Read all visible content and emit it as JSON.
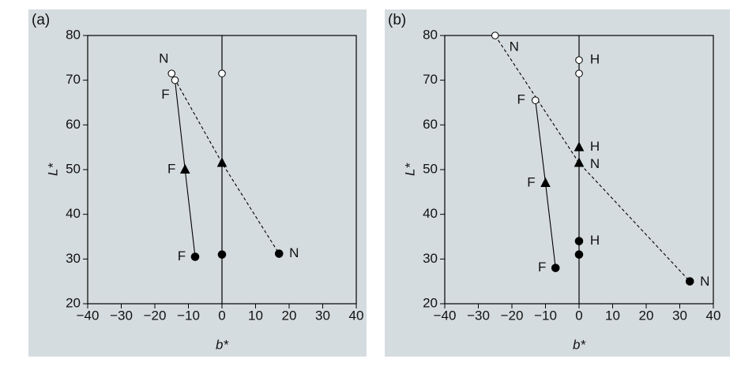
{
  "chart_data": [
    {
      "type": "scatter",
      "panel_label": "(a)",
      "xlabel": "b*",
      "ylabel": "L*",
      "xlim": [
        -40,
        40
      ],
      "ylim": [
        20,
        80
      ],
      "xticks": [
        {
          "value": -40,
          "label": "−40"
        },
        {
          "value": -30,
          "label": "−30"
        },
        {
          "value": -20,
          "label": "−20"
        },
        {
          "value": -10,
          "label": "−10"
        },
        0,
        10,
        20,
        30,
        40
      ],
      "yticks": [
        20,
        30,
        40,
        50,
        60,
        70,
        80
      ],
      "zero_line": true,
      "series": [
        {
          "style": "dashed",
          "x": [
            -15,
            0,
            17
          ],
          "y": [
            71.5,
            51.5,
            31.2
          ],
          "markers": [
            "open-circle",
            "filled-triangle",
            "filled-circle"
          ],
          "labels": [
            "N",
            null,
            "N"
          ]
        },
        {
          "style": "solid",
          "x": [
            -14,
            -11,
            -8
          ],
          "y": [
            70,
            50,
            30.5
          ],
          "markers": [
            "open-circle",
            "filled-triangle",
            "filled-circle"
          ],
          "labels": [
            "F",
            "F",
            "F"
          ]
        },
        {
          "style": "none",
          "x": [
            0,
            0
          ],
          "y": [
            71.5,
            31
          ],
          "markers": [
            "open-circle",
            "filled-circle"
          ]
        }
      ]
    },
    {
      "type": "scatter",
      "panel_label": "(b)",
      "xlabel": "b*",
      "ylabel": "L*",
      "xlim": [
        -40,
        40
      ],
      "ylim": [
        20,
        80
      ],
      "xticks": [
        {
          "value": -40,
          "label": "−40"
        },
        {
          "value": -30,
          "label": "−30"
        },
        {
          "value": -20,
          "label": "−20"
        },
        {
          "value": -10,
          "label": "−10"
        },
        0,
        10,
        20,
        30,
        40
      ],
      "yticks": [
        20,
        30,
        40,
        50,
        60,
        70,
        80
      ],
      "zero_line": true,
      "series": [
        {
          "style": "dashed",
          "x": [
            -25,
            0,
            33
          ],
          "y": [
            80,
            51.5,
            25
          ],
          "markers": [
            "open-circle",
            "filled-triangle",
            "filled-circle"
          ],
          "labels": [
            "N",
            "N",
            "N"
          ]
        },
        {
          "style": "solid",
          "x": [
            -13,
            -10,
            -7
          ],
          "y": [
            65.5,
            47,
            28
          ],
          "markers": [
            "open-circle",
            "filled-triangle",
            "filled-circle"
          ],
          "labels": [
            "F",
            "F",
            "F"
          ]
        },
        {
          "style": "none",
          "x": [
            0,
            0,
            0
          ],
          "y": [
            74.5,
            55,
            34
          ],
          "markers": [
            "open-circle",
            "filled-triangle",
            "filled-circle"
          ],
          "labels": [
            "H",
            "H",
            "H"
          ]
        },
        {
          "style": "none",
          "x": [
            0,
            0
          ],
          "y": [
            71.5,
            31
          ],
          "markers": [
            "open-circle",
            "filled-circle"
          ]
        }
      ]
    }
  ]
}
